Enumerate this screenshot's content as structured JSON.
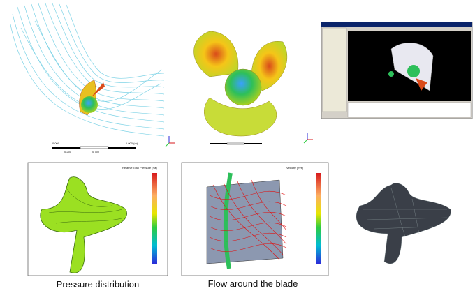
{
  "scale_bar": {
    "labels": [
      "0.000",
      "1.000 (m)",
      "0.250",
      "0.750"
    ]
  },
  "panels": [
    {
      "legend_title": "Relative Total Pressure (Pa)",
      "caption": "Pressure distribution"
    },
    {
      "legend_title": "Velocity (m/s)",
      "caption": "Flow around the blade"
    }
  ]
}
